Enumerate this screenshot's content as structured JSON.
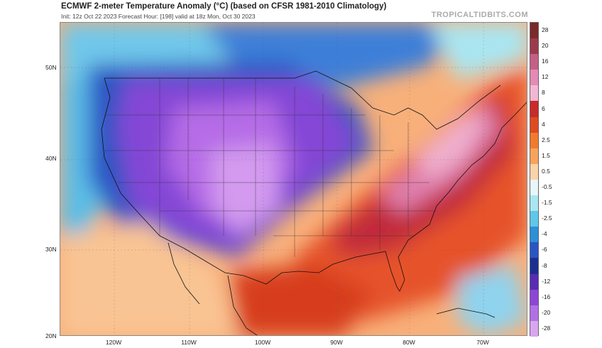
{
  "header": {
    "title": "ECMWF 2-meter Temperature Anomaly (°C) (based on CFSR 1981-2010 Climatology)",
    "subtitle": "Init: 12z Oct 22 2023   Forecast Hour: [198]   valid at 18z Mon, Oct 30 2023",
    "brand": "TROPICALTIDBITS.COM"
  },
  "map": {
    "lat_labels": [
      "50N",
      "40N",
      "30N",
      "20N"
    ],
    "lon_labels": [
      "120W",
      "110W",
      "100W",
      "90W",
      "80W",
      "70W"
    ]
  },
  "colorbar": {
    "labels": [
      "28",
      "20",
      "16",
      "12",
      "8",
      "6",
      "4",
      "2.5",
      "1.5",
      "0.5",
      "-0.5",
      "-1.5",
      "-2.5",
      "-4",
      "-6",
      "-8",
      "-12",
      "-16",
      "-20",
      "-28"
    ],
    "colors": [
      "#7a2b2b",
      "#9c3a4c",
      "#c45f86",
      "#e58ab4",
      "#f3b7d3",
      "#c92a2a",
      "#e04a22",
      "#f27a2c",
      "#f8a35c",
      "#fbd3a8",
      "#e8f6fa",
      "#a9e6f2",
      "#5ec8ea",
      "#2f8fd8",
      "#2a55c4",
      "#1c2f8f",
      "#5a2bb5",
      "#8d45d6",
      "#b170e6",
      "#d8a6f0"
    ]
  }
}
